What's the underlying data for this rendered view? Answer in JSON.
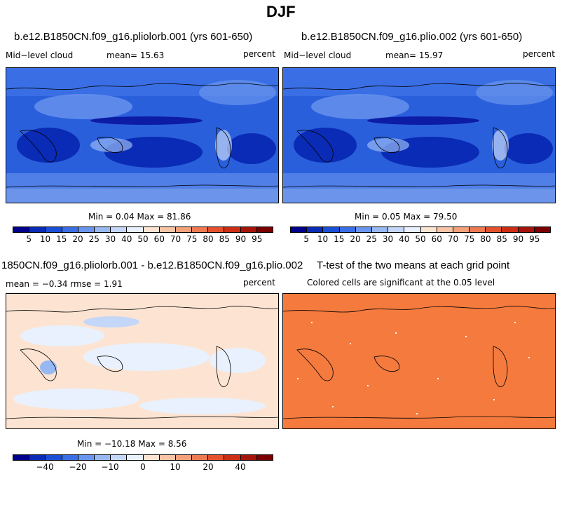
{
  "figure_title": "DJF",
  "panels": {
    "p1": {
      "title": "b.e12.B1850CN.f09_g16.pliolorb.001 (yrs 601-650)",
      "var": "Mid−level cloud",
      "mean": "mean=  15.63",
      "units": "percent",
      "minmax": "Min =   0.04 Max =  81.86"
    },
    "p2": {
      "title": "b.e12.B1850CN.f09_g16.plio.002 (yrs 601-650)",
      "var": "Mid−level cloud",
      "mean": "mean=  15.97",
      "units": "percent",
      "minmax": "Min =   0.05 Max =  79.50"
    },
    "p3": {
      "title": "1850CN.f09_g16.pliolorb.001 - b.e12.B1850CN.f09_g16.plio.002",
      "stats": "mean =  −0.34    rmse =    1.91",
      "units": "percent",
      "minmax": "Min = −10.18 Max =   8.56"
    },
    "p4": {
      "title": "T-test of the two means at each grid point",
      "subtitle": "Colored cells are significant at the 0.05 level"
    }
  },
  "colorbar_abs": {
    "colors": [
      "#00008c",
      "#0a2bb5",
      "#1a4fd6",
      "#3a6ee4",
      "#6a95ee",
      "#97b8f3",
      "#c4d7f8",
      "#e8f1fd",
      "#fde4d2",
      "#f9c4a5",
      "#f4a07a",
      "#ee7a52",
      "#e4512d",
      "#cc2e14",
      "#a5140a",
      "#7a0000"
    ],
    "tick_labels": [
      "5",
      "10",
      "15",
      "20",
      "25",
      "30",
      "40",
      "50",
      "60",
      "70",
      "75",
      "80",
      "85",
      "90",
      "95"
    ]
  },
  "colorbar_diff": {
    "colors": [
      "#00008c",
      "#0a2bb5",
      "#1a4fd6",
      "#3a6ee4",
      "#6a95ee",
      "#97b8f3",
      "#c4d7f8",
      "#e8f1fd",
      "#fde4d2",
      "#f9c4a5",
      "#f4a07a",
      "#ee7a52",
      "#e4512d",
      "#cc2e14",
      "#a5140a",
      "#7a0000"
    ],
    "tick_labels": [
      "−40",
      "−20",
      "−10",
      "0",
      "10",
      "20",
      "40"
    ]
  }
}
